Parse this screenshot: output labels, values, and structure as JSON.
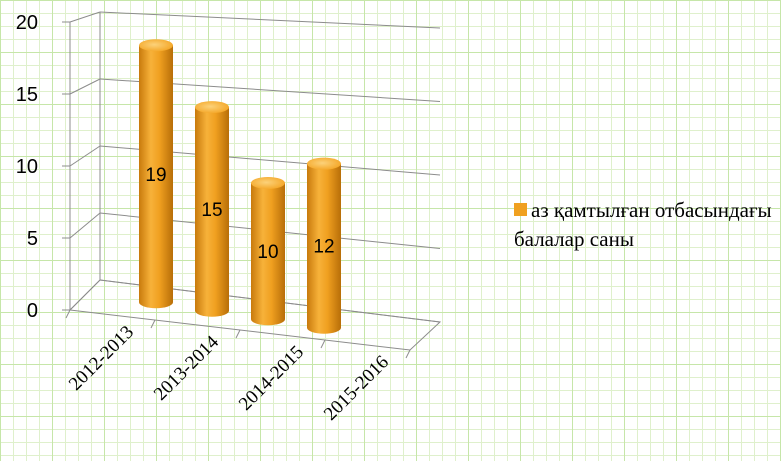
{
  "chart_data": {
    "type": "bar",
    "categories": [
      "2012-2013",
      "2013-2014",
      "2014-2015",
      "2015-2016"
    ],
    "series": [
      {
        "name": "аз қамтылған отбасындағы балалар саны",
        "values": [
          19,
          15,
          10,
          12
        ]
      }
    ],
    "ylim": [
      0,
      20
    ],
    "yticks": [
      "0",
      "5",
      "10",
      "15",
      "20"
    ],
    "data_labels": [
      "19",
      "15",
      "10",
      "12"
    ],
    "grid": true,
    "legend_position": "right",
    "bar_shape": "cylinder",
    "colors": {
      "bar": "#f0a020",
      "bar_dark": "#c87a0c",
      "bar_light": "#fbc75a",
      "grid": "#8c8c8c"
    }
  }
}
